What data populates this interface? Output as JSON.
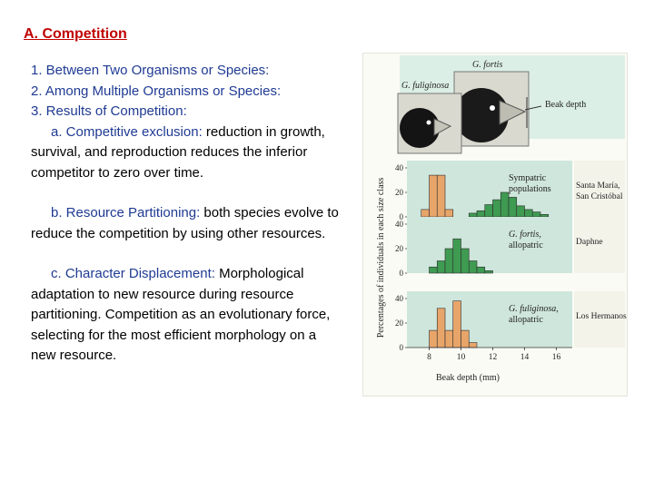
{
  "heading": "A. Competition",
  "items": {
    "i1": "1. Between Two Organisms or Species:",
    "i2": "2. Among Multiple Organisms or Species:",
    "i3": "3. Results of Competition:",
    "a_term": "a. Competitive exclusion:",
    "a_text": " reduction in growth, survival, and reproduction reduces the inferior competitor to zero over time.",
    "b_term": "b. Resource Partitioning:",
    "b_text": " both species evolve to reduce the competition by using other resources.",
    "c_term": "c. Character Displacement:",
    "c_text": " Morphological adaptation to new resource during resource partitioning.  Competition as an evolutionary force, selecting for the most efficient morphology on a new resource."
  },
  "figure": {
    "label_fortis": "G. fortis",
    "label_fuliginosa": "G. fuliginosa",
    "label_beak_depth": "Beak depth",
    "ylabel": "Percentages of individuals in each size class",
    "xlabel": "Beak depth (mm)",
    "panels": [
      {
        "label_line1": "Sympatric",
        "label_line2": "populations",
        "location_line1": "Santa María,",
        "location_line2": "San Cristóbal"
      },
      {
        "label_line1": "G. fortis,",
        "label_line2": "allopatric",
        "location_line1": "Daphne",
        "location_line2": ""
      },
      {
        "label_line1": "G. fuliginosa,",
        "label_line2": "allopatric",
        "location_line1": "Los Hermanos",
        "location_line2": ""
      }
    ],
    "yticks": [
      "40",
      "20",
      "0"
    ],
    "xticks": [
      "8",
      "10",
      "12",
      "14",
      "16"
    ],
    "colors": {
      "orange": "#e8a56a",
      "green": "#3f9a52",
      "panel_bg": "#cfe6dc",
      "header_bg": "#dcefe6"
    }
  },
  "chart_data": {
    "type": "bar",
    "title": "",
    "xlabel": "Beak depth (mm)",
    "ylabel": "Percentages of individuals in each size class",
    "xlim": [
      6.6,
      17.0
    ],
    "ylim": [
      0,
      40
    ],
    "bin_width": 0.5,
    "panels": [
      {
        "name": "Sympatric populations",
        "location": "Santa María, San Cristóbal",
        "series": [
          {
            "name": "G. fuliginosa",
            "color": "orange",
            "bins": [
              7.5,
              8.0,
              8.5,
              9.0
            ],
            "values": [
              6,
              34,
              34,
              6
            ]
          },
          {
            "name": "G. fortis",
            "color": "green",
            "bins": [
              10.5,
              11.0,
              11.5,
              12.0,
              12.5,
              13.0,
              13.5,
              14.0,
              14.5,
              15.0
            ],
            "values": [
              3,
              5,
              10,
              14,
              20,
              16,
              9,
              6,
              4,
              2
            ]
          }
        ]
      },
      {
        "name": "G. fortis, allopatric",
        "location": "Daphne",
        "series": [
          {
            "name": "G. fortis",
            "color": "green",
            "bins": [
              8.0,
              8.5,
              9.0,
              9.5,
              10.0,
              10.5,
              11.0,
              11.5
            ],
            "values": [
              5,
              10,
              20,
              28,
              20,
              10,
              5,
              2
            ]
          }
        ]
      },
      {
        "name": "G. fuliginosa, allopatric",
        "location": "Los Hermanos",
        "series": [
          {
            "name": "G. fuliginosa",
            "color": "orange",
            "bins": [
              8.0,
              8.5,
              9.0,
              9.5,
              10.0,
              10.5
            ],
            "values": [
              14,
              32,
              14,
              38,
              14,
              4
            ]
          }
        ]
      }
    ]
  }
}
